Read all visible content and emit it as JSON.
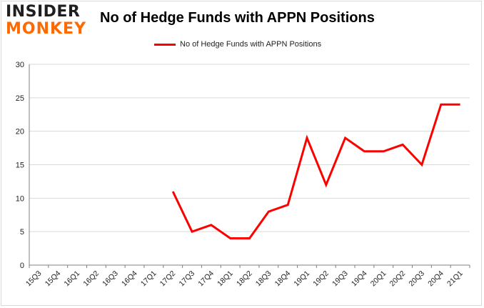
{
  "logo": {
    "line1": "INSIDER",
    "line2": "MONKEY"
  },
  "colors": {
    "series": "#ff0000",
    "grid": "#d9d9d9",
    "axis": "#000000"
  },
  "chart_data": {
    "type": "line",
    "title": "No of Hedge Funds with APPN Positions",
    "xlabel": "",
    "ylabel": "",
    "ylim": [
      0,
      30
    ],
    "yticks": [
      0,
      5,
      10,
      15,
      20,
      25,
      30
    ],
    "grid": true,
    "legend_position": "top-center",
    "categories": [
      "15Q3",
      "15Q4",
      "16Q1",
      "16Q2",
      "16Q3",
      "16Q4",
      "17Q1",
      "17Q2",
      "17Q3",
      "17Q4",
      "18Q1",
      "18Q2",
      "18Q3",
      "18Q4",
      "19Q1",
      "19Q2",
      "19Q3",
      "19Q4",
      "20Q1",
      "20Q2",
      "20Q3",
      "20Q4",
      "21Q1"
    ],
    "series": [
      {
        "name": "No of Hedge Funds with APPN Positions",
        "values": [
          null,
          null,
          null,
          null,
          null,
          null,
          null,
          11,
          5,
          6,
          4,
          4,
          8,
          9,
          19,
          12,
          19,
          17,
          17,
          18,
          15,
          24,
          24
        ]
      }
    ]
  }
}
